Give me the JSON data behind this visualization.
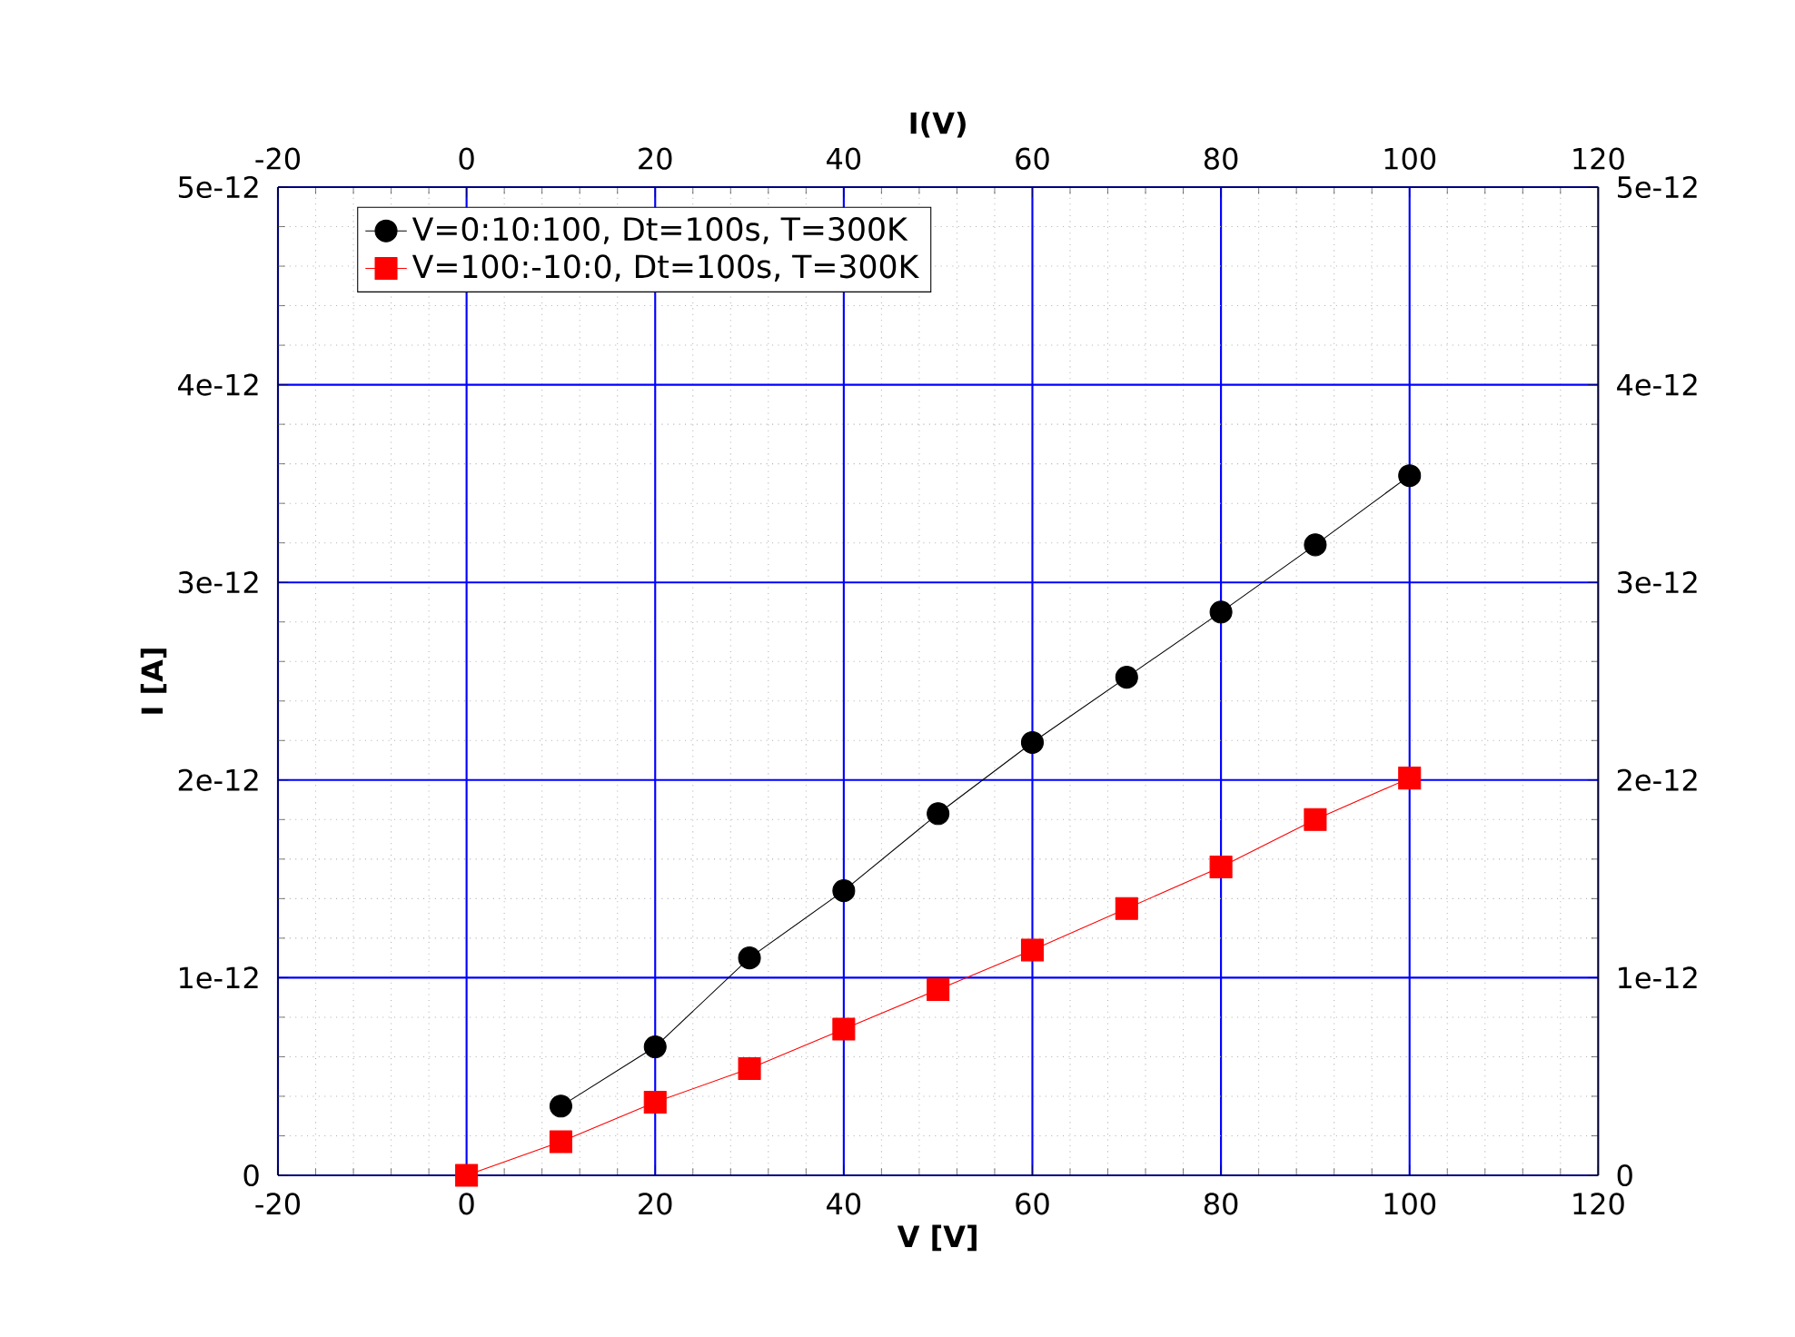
{
  "chart_data": {
    "type": "line",
    "xlabel": "V   [V]",
    "ylabel": "I   [A]",
    "x2label": "I(V)",
    "xlim": [
      -20,
      120
    ],
    "xticks": [
      -20,
      0,
      20,
      40,
      60,
      80,
      100,
      120
    ],
    "x2lim": [
      -20,
      120
    ],
    "x2ticks": [
      -20,
      0,
      20,
      40,
      60,
      80,
      100,
      120
    ],
    "ylim": [
      0,
      5e-12
    ],
    "yticks": [
      {
        "value": 0,
        "label": "0"
      },
      {
        "value": 1e-12,
        "label": "1e-12"
      },
      {
        "value": 2e-12,
        "label": "2e-12"
      },
      {
        "value": 3e-12,
        "label": "3e-12"
      },
      {
        "value": 4e-12,
        "label": "4e-12"
      },
      {
        "value": 5e-12,
        "label": "5e-12"
      }
    ],
    "y2lim": [
      0,
      5e-12
    ],
    "y2ticks": [
      {
        "value": 0,
        "label": "0"
      },
      {
        "value": 1e-12,
        "label": "1e-12"
      },
      {
        "value": 2e-12,
        "label": "2e-12"
      },
      {
        "value": 3e-12,
        "label": "3e-12"
      },
      {
        "value": 4e-12,
        "label": "4e-12"
      },
      {
        "value": 5e-12,
        "label": "5e-12"
      }
    ],
    "grid": true,
    "legend": "top",
    "series": [
      {
        "name": "V=0:10:100, Dt=100s, T=300K",
        "color": "#000000",
        "marker": "circle",
        "x": [
          10,
          20,
          30,
          40,
          50,
          60,
          70,
          80,
          90,
          100
        ],
        "values": [
          3.5e-13,
          6.5e-13,
          1.1e-12,
          1.44e-12,
          1.83e-12,
          2.19e-12,
          2.52e-12,
          2.85e-12,
          3.19e-12,
          3.54e-12
        ]
      },
      {
        "name": "V=100:-10:0, Dt=100s, T=300K",
        "color": "#ff0000",
        "marker": "square",
        "x": [
          0,
          10,
          20,
          30,
          40,
          50,
          60,
          70,
          80,
          90,
          100
        ],
        "values": [
          0,
          1.7e-13,
          3.7e-13,
          5.4e-13,
          7.4e-13,
          9.4e-13,
          1.14e-12,
          1.35e-12,
          1.56e-12,
          1.8e-12,
          2.01e-12
        ]
      }
    ]
  }
}
